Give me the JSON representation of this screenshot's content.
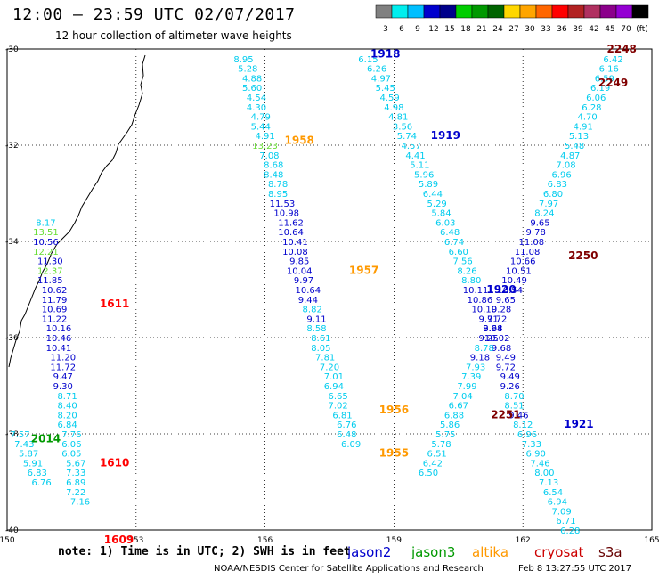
{
  "header": {
    "title": "12:00 – 23:59 UTC 02/07/2017",
    "subtitle": "12 hour collection of altimeter wave heights"
  },
  "colorbar": {
    "ticks": [
      "3",
      "6",
      "9",
      "12",
      "15",
      "18",
      "21",
      "24",
      "27",
      "30",
      "33",
      "36",
      "39",
      "42",
      "45",
      "70",
      "(ft)"
    ],
    "colors": [
      "#808080",
      "#00eeee",
      "#00bfff",
      "#0000cd",
      "#00008b",
      "#00cd00",
      "#009900",
      "#006400",
      "#ffd700",
      "#ffa500",
      "#ff6600",
      "#ff0000",
      "#b22222",
      "#b03060",
      "#8b008b",
      "#9400d3",
      "#000000"
    ]
  },
  "map": {
    "lon_ticks": [
      "150",
      "153",
      "156",
      "159",
      "162",
      "165"
    ],
    "lat_ticks": [
      "-30",
      "-32",
      "-34",
      "-36",
      "-38",
      "-40"
    ],
    "grid_color": "#000000"
  },
  "tracks": [
    {
      "satellite": "jason2",
      "color": "#0000cc",
      "points": [
        [
          155.5,
          -30.2,
          "8.95",
          "#00ccee"
        ],
        [
          155.6,
          -30.4,
          "5.28",
          "#00ccee"
        ],
        [
          155.7,
          -30.6,
          "4.88",
          "#00ccee"
        ],
        [
          155.7,
          -30.8,
          "5.60",
          "#00ccee"
        ],
        [
          155.8,
          -31.0,
          "4.54",
          "#00ccee"
        ],
        [
          155.8,
          -31.2,
          "4.30",
          "#00ccee"
        ],
        [
          155.9,
          -31.4,
          "4.79",
          "#00ccee"
        ],
        [
          155.9,
          -31.6,
          "5.44",
          "#00ccee"
        ],
        [
          156.0,
          -31.8,
          "4.91",
          "#00ccee"
        ],
        [
          156.0,
          -32.0,
          "13.23",
          "#66dd33"
        ],
        [
          156.1,
          -32.2,
          "7.08",
          "#00ccee"
        ],
        [
          156.2,
          -32.4,
          "8.68",
          "#00ccee"
        ],
        [
          156.2,
          -32.6,
          "8.48",
          "#00ccee"
        ],
        [
          156.3,
          -32.8,
          "8.78",
          "#00ccee"
        ],
        [
          156.3,
          -33.0,
          "8.95",
          "#00ccee"
        ],
        [
          156.4,
          -33.2,
          "11.53",
          "#0000cc"
        ],
        [
          156.5,
          -33.4,
          "10.98",
          "#0000cc"
        ],
        [
          156.6,
          -33.6,
          "11.62",
          "#0000cc"
        ],
        [
          156.6,
          -33.8,
          "10.64",
          "#0000cc"
        ],
        [
          156.7,
          -34.0,
          "10.41",
          "#0000cc"
        ],
        [
          156.7,
          -34.2,
          "10.08",
          "#0000cc"
        ],
        [
          156.8,
          -34.4,
          "9.85",
          "#0000cc"
        ],
        [
          156.8,
          -34.6,
          "10.04",
          "#0000cc"
        ],
        [
          156.9,
          -34.8,
          "9.97",
          "#0000cc"
        ],
        [
          157.0,
          -35.0,
          "10.64",
          "#0000cc"
        ],
        [
          157.0,
          -35.2,
          "9.44",
          "#0000cc"
        ],
        [
          157.1,
          -35.4,
          "8.82",
          "#00ccee"
        ],
        [
          157.2,
          -35.6,
          "9.11",
          "#0000cc"
        ],
        [
          157.2,
          -35.8,
          "8.58",
          "#00ccee"
        ],
        [
          157.3,
          -36.0,
          "8.61",
          "#00ccee"
        ],
        [
          157.3,
          -36.2,
          "8.05",
          "#00ccee"
        ],
        [
          157.4,
          -36.4,
          "7.81",
          "#00ccee"
        ],
        [
          157.5,
          -36.6,
          "7.20",
          "#00ccee"
        ],
        [
          157.6,
          -36.8,
          "7.01",
          "#00ccee"
        ],
        [
          157.6,
          -37.0,
          "6.94",
          "#00ccee"
        ],
        [
          157.7,
          -37.2,
          "6.65",
          "#00ccee"
        ],
        [
          157.7,
          -37.4,
          "7.02",
          "#00ccee"
        ],
        [
          157.8,
          -37.6,
          "6.81",
          "#00ccee"
        ],
        [
          157.9,
          -37.8,
          "6.76",
          "#00ccee"
        ],
        [
          157.9,
          -38.0,
          "6.48",
          "#00ccee"
        ],
        [
          158.0,
          -38.2,
          "6.09",
          "#00ccee"
        ]
      ],
      "time_labels": [
        [
          156.8,
          -31.9,
          "1958",
          "#ff9900"
        ],
        [
          158.3,
          -34.6,
          "1957",
          "#ff9900"
        ],
        [
          159.0,
          -37.5,
          "1956",
          "#ff9900"
        ],
        [
          159.0,
          -38.4,
          "1955",
          "#ff9900"
        ]
      ]
    },
    {
      "satellite": "jason2",
      "color": "#0000cc",
      "points": [
        [
          158.4,
          -30.2,
          "6.15",
          "#00ccee"
        ],
        [
          158.6,
          -30.4,
          "6.26",
          "#00ccee"
        ],
        [
          158.7,
          -30.6,
          "4.97",
          "#00ccee"
        ],
        [
          158.8,
          -30.8,
          "5.45",
          "#00ccee"
        ],
        [
          158.9,
          -31.0,
          "4.59",
          "#00ccee"
        ],
        [
          159.0,
          -31.2,
          "4.98",
          "#00ccee"
        ],
        [
          159.1,
          -31.4,
          "4.81",
          "#00ccee"
        ],
        [
          159.2,
          -31.6,
          "3.56",
          "#00ccee"
        ],
        [
          159.3,
          -31.8,
          "5.74",
          "#00ccee"
        ],
        [
          159.4,
          -32.0,
          "4.57",
          "#00ccee"
        ],
        [
          159.5,
          -32.2,
          "4.41",
          "#00ccee"
        ],
        [
          159.6,
          -32.4,
          "5.11",
          "#00ccee"
        ],
        [
          159.7,
          -32.6,
          "5.96",
          "#00ccee"
        ],
        [
          159.8,
          -32.8,
          "5.89",
          "#00ccee"
        ],
        [
          159.9,
          -33.0,
          "6.44",
          "#00ccee"
        ],
        [
          160.0,
          -33.2,
          "5.29",
          "#00ccee"
        ],
        [
          160.1,
          -33.4,
          "5.84",
          "#00ccee"
        ],
        [
          160.2,
          -33.6,
          "6.03",
          "#00ccee"
        ],
        [
          160.3,
          -33.8,
          "6.48",
          "#00ccee"
        ],
        [
          160.4,
          -34.0,
          "6.74",
          "#00ccee"
        ],
        [
          160.5,
          -34.2,
          "6.60",
          "#00ccee"
        ],
        [
          160.6,
          -34.4,
          "7.56",
          "#00ccee"
        ],
        [
          160.7,
          -34.6,
          "8.26",
          "#00ccee"
        ],
        [
          160.8,
          -34.8,
          "8.80",
          "#00ccee"
        ],
        [
          160.9,
          -35.0,
          "10.11",
          "#0000cc"
        ],
        [
          161.0,
          -35.2,
          "10.86",
          "#0000cc"
        ],
        [
          161.1,
          -35.4,
          "10.10",
          "#0000cc"
        ],
        [
          161.2,
          -35.6,
          "9.71",
          "#0000cc"
        ],
        [
          161.3,
          -35.8,
          "9.68",
          "#0000cc"
        ],
        [
          161.4,
          -36.0,
          "10.02",
          "#0000cc"
        ],
        [
          161.5,
          -36.2,
          "9.68",
          "#0000cc"
        ],
        [
          161.6,
          -36.4,
          "9.49",
          "#0000cc"
        ],
        [
          161.6,
          -36.6,
          "9.72",
          "#0000cc"
        ],
        [
          161.7,
          -36.8,
          "9.49",
          "#0000cc"
        ],
        [
          161.7,
          -37.0,
          "9.26",
          "#0000cc"
        ],
        [
          161.8,
          -37.2,
          "8.70",
          "#00ccee"
        ],
        [
          161.8,
          -37.4,
          "8.51",
          "#00ccee"
        ],
        [
          161.9,
          -37.6,
          "9.46",
          "#0000cc"
        ],
        [
          162.0,
          -37.8,
          "8.12",
          "#00ccee"
        ],
        [
          162.1,
          -38.0,
          "6.96",
          "#00ccee"
        ],
        [
          162.2,
          -38.2,
          "7.33",
          "#00ccee"
        ],
        [
          162.3,
          -38.4,
          "6.90",
          "#00ccee"
        ],
        [
          162.4,
          -38.6,
          "7.46",
          "#00ccee"
        ],
        [
          162.5,
          -38.8,
          "8.00",
          "#00ccee"
        ],
        [
          162.6,
          -39.0,
          "7.13",
          "#00ccee"
        ],
        [
          162.7,
          -39.2,
          "6.54",
          "#00ccee"
        ],
        [
          162.8,
          -39.4,
          "6.94",
          "#00ccee"
        ],
        [
          162.9,
          -39.6,
          "7.09",
          "#00ccee"
        ],
        [
          163.0,
          -39.8,
          "6.71",
          "#00ccee"
        ],
        [
          163.1,
          -40.0,
          "6.28",
          "#00ccee"
        ]
      ],
      "time_labels": [
        [
          158.8,
          -30.1,
          "1918",
          "#0000cc"
        ],
        [
          160.2,
          -31.8,
          "1919",
          "#0000cc"
        ],
        [
          161.5,
          -35.0,
          "1920",
          "#0000cc"
        ],
        [
          163.3,
          -37.8,
          "1921",
          "#0000cc"
        ]
      ]
    },
    {
      "satellite": "cryosat",
      "color": "#cc0000",
      "points": [
        [
          150.9,
          -33.6,
          "8.17",
          "#00ccee"
        ],
        [
          150.9,
          -33.8,
          "13.51",
          "#66dd33"
        ],
        [
          150.9,
          -34.0,
          "10.56",
          "#0000cc"
        ],
        [
          150.9,
          -34.2,
          "12.21",
          "#66dd33"
        ],
        [
          151.0,
          -34.4,
          "11.30",
          "#0000cc"
        ],
        [
          151.0,
          -34.6,
          "12.37",
          "#66dd33"
        ],
        [
          151.0,
          -34.8,
          "11.85",
          "#0000cc"
        ],
        [
          151.1,
          -35.0,
          "10.62",
          "#0000cc"
        ],
        [
          151.1,
          -35.2,
          "11.79",
          "#0000cc"
        ],
        [
          151.1,
          -35.4,
          "10.69",
          "#0000cc"
        ],
        [
          151.1,
          -35.6,
          "11.22",
          "#0000cc"
        ],
        [
          151.2,
          -35.8,
          "10.16",
          "#0000cc"
        ],
        [
          151.2,
          -36.0,
          "10.46",
          "#0000cc"
        ],
        [
          151.2,
          -36.2,
          "10.41",
          "#0000cc"
        ],
        [
          151.3,
          -36.4,
          "11.20",
          "#0000cc"
        ],
        [
          151.3,
          -36.6,
          "11.72",
          "#0000cc"
        ],
        [
          151.3,
          -36.8,
          "9.47",
          "#0000cc"
        ],
        [
          151.3,
          -37.0,
          "9.30",
          "#0000cc"
        ],
        [
          151.4,
          -37.2,
          "8.71",
          "#00ccee"
        ],
        [
          151.4,
          -37.4,
          "8.40",
          "#00ccee"
        ],
        [
          151.4,
          -37.6,
          "8.20",
          "#00ccee"
        ],
        [
          151.4,
          -37.8,
          "6.84",
          "#00ccee"
        ],
        [
          151.5,
          -38.0,
          "7.76",
          "#00ccee"
        ],
        [
          151.5,
          -38.2,
          "6.06",
          "#00ccee"
        ],
        [
          151.5,
          -38.4,
          "6.05",
          "#00ccee"
        ],
        [
          151.6,
          -38.6,
          "5.67",
          "#00ccee"
        ],
        [
          151.6,
          -38.8,
          "7.33",
          "#00ccee"
        ],
        [
          151.6,
          -39.0,
          "6.89",
          "#00ccee"
        ],
        [
          151.6,
          -39.2,
          "7.22",
          "#00ccee"
        ],
        [
          151.7,
          -39.4,
          "7.16",
          "#00ccee"
        ]
      ],
      "time_labels": [
        [
          152.5,
          -35.3,
          "1611",
          "#ff0000"
        ],
        [
          152.5,
          -38.6,
          "1610",
          "#ff0000"
        ],
        [
          152.6,
          -40.2,
          "1609",
          "#ff0000"
        ]
      ]
    },
    {
      "satellite": "s3a",
      "color": "#660000",
      "points": [
        [
          164.1,
          -30.2,
          "6.42",
          "#00ccee"
        ],
        [
          164.0,
          -30.4,
          "6.16",
          "#00ccee"
        ],
        [
          163.9,
          -30.6,
          "6.59",
          "#00ccee"
        ],
        [
          163.8,
          -30.8,
          "6.19",
          "#00ccee"
        ],
        [
          163.7,
          -31.0,
          "6.06",
          "#00ccee"
        ],
        [
          163.6,
          -31.2,
          "6.28",
          "#00ccee"
        ],
        [
          163.5,
          -31.4,
          "4.70",
          "#00ccee"
        ],
        [
          163.4,
          -31.6,
          "4.91",
          "#00ccee"
        ],
        [
          163.3,
          -31.8,
          "5.13",
          "#00ccee"
        ],
        [
          163.2,
          -32.0,
          "5.48",
          "#00ccee"
        ],
        [
          163.1,
          -32.2,
          "4.87",
          "#00ccee"
        ],
        [
          163.0,
          -32.4,
          "7.08",
          "#00ccee"
        ],
        [
          162.9,
          -32.6,
          "6.96",
          "#00ccee"
        ],
        [
          162.8,
          -32.8,
          "6.83",
          "#00ccee"
        ],
        [
          162.7,
          -33.0,
          "6.80",
          "#00ccee"
        ],
        [
          162.6,
          -33.2,
          "7.97",
          "#00ccee"
        ],
        [
          162.5,
          -33.4,
          "8.24",
          "#00ccee"
        ],
        [
          162.4,
          -33.6,
          "9.65",
          "#0000cc"
        ],
        [
          162.3,
          -33.8,
          "9.78",
          "#0000cc"
        ],
        [
          162.2,
          -34.0,
          "11.08",
          "#0000cc"
        ],
        [
          162.1,
          -34.2,
          "11.08",
          "#0000cc"
        ],
        [
          162.0,
          -34.4,
          "10.66",
          "#0000cc"
        ],
        [
          161.9,
          -34.6,
          "10.51",
          "#0000cc"
        ],
        [
          161.8,
          -34.8,
          "10.49",
          "#0000cc"
        ],
        [
          161.7,
          -35.0,
          "10.54",
          "#0000cc"
        ],
        [
          161.6,
          -35.2,
          "9.65",
          "#0000cc"
        ],
        [
          161.5,
          -35.4,
          "9.28",
          "#0000cc"
        ],
        [
          161.4,
          -35.6,
          "9.72",
          "#0000cc"
        ],
        [
          161.3,
          -35.8,
          "8.94",
          "#0000cc"
        ],
        [
          161.2,
          -36.0,
          "9.25",
          "#0000cc"
        ],
        [
          161.1,
          -36.2,
          "8.78",
          "#00ccee"
        ],
        [
          161.0,
          -36.4,
          "9.18",
          "#0000cc"
        ],
        [
          160.9,
          -36.6,
          "7.93",
          "#00ccee"
        ],
        [
          160.8,
          -36.8,
          "7.39",
          "#00ccee"
        ],
        [
          160.7,
          -37.0,
          "7.99",
          "#00ccee"
        ],
        [
          160.6,
          -37.2,
          "7.04",
          "#00ccee"
        ],
        [
          160.5,
          -37.4,
          "6.67",
          "#00ccee"
        ],
        [
          160.4,
          -37.6,
          "6.88",
          "#00ccee"
        ],
        [
          160.3,
          -37.8,
          "5.86",
          "#00ccee"
        ],
        [
          160.2,
          -38.0,
          "5.75",
          "#00ccee"
        ],
        [
          160.1,
          -38.2,
          "5.78",
          "#00ccee"
        ],
        [
          160.0,
          -38.4,
          "6.51",
          "#00ccee"
        ],
        [
          159.9,
          -38.6,
          "6.42",
          "#00ccee"
        ],
        [
          159.8,
          -38.8,
          "6.50",
          "#00ccee"
        ]
      ],
      "time_labels": [
        [
          164.3,
          -30.0,
          "2248",
          "#800000"
        ],
        [
          164.1,
          -30.7,
          "2249",
          "#800000"
        ],
        [
          163.4,
          -34.3,
          "2250",
          "#800000"
        ],
        [
          161.6,
          -37.6,
          "2251",
          "#800000"
        ]
      ]
    },
    {
      "satellite": "jason3",
      "color": "#009900",
      "points": [
        [
          150.3,
          -38.0,
          "7.57",
          "#00ccee"
        ],
        [
          150.4,
          -38.2,
          "7.43",
          "#00ccee"
        ],
        [
          150.5,
          -38.4,
          "5.87",
          "#00ccee"
        ],
        [
          150.6,
          -38.6,
          "5.91",
          "#00ccee"
        ],
        [
          150.7,
          -38.8,
          "6.83",
          "#00ccee"
        ],
        [
          150.8,
          -39.0,
          "6.76",
          "#00ccee"
        ]
      ],
      "time_labels": [
        [
          150.9,
          -38.1,
          "2014",
          "#009900"
        ]
      ]
    }
  ],
  "footer": {
    "note": "note: 1) Time is in UTC; 2) SWH is in feet",
    "legend": [
      {
        "name": "jason2",
        "color": "#0000cc"
      },
      {
        "name": "jason3",
        "color": "#009900"
      },
      {
        "name": "altika",
        "color": "#ff9900"
      },
      {
        "name": "cryosat",
        "color": "#cc0000"
      },
      {
        "name": "s3a",
        "color": "#660000"
      }
    ],
    "credit": "NOAA/NESDIS Center for Satellite Applications and Research",
    "generated": "Feb  8 13:27:55 UTC 2017"
  }
}
